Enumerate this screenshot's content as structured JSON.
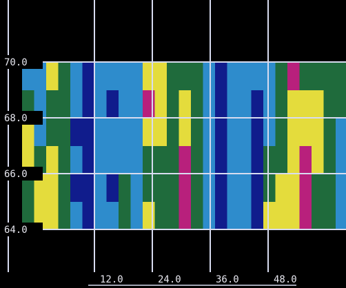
{
  "chart_data": {
    "type": "heatmap",
    "x": [
      -1.75,
      0.75,
      3.25,
      5.75,
      8.25,
      10.75,
      13.25,
      15.75,
      18.25,
      20.75,
      23.25,
      25.75,
      28.25,
      30.75,
      33.25,
      35.75,
      38.25,
      40.75,
      43.25,
      45.75,
      48.25,
      50.75,
      53.25,
      55.75,
      58.25,
      60.75,
      63.25
    ],
    "y": [
      64.5,
      65.5,
      66.5,
      67.5,
      68.5,
      69.5
    ],
    "z": [
      [
        2,
        3,
        3,
        2,
        1,
        0,
        1,
        1,
        2,
        1,
        3,
        2,
        2,
        4,
        2,
        1,
        0,
        1,
        1,
        0,
        3,
        3,
        3,
        4,
        2,
        2,
        1
      ],
      [
        2,
        3,
        3,
        2,
        0,
        0,
        1,
        0,
        2,
        1,
        2,
        2,
        2,
        4,
        2,
        1,
        0,
        1,
        1,
        0,
        2,
        3,
        3,
        4,
        2,
        2,
        1
      ],
      [
        3,
        2,
        3,
        2,
        1,
        0,
        1,
        1,
        1,
        1,
        2,
        2,
        2,
        4,
        2,
        1,
        0,
        1,
        1,
        0,
        2,
        2,
        3,
        4,
        3,
        2,
        1
      ],
      [
        3,
        1,
        2,
        2,
        0,
        0,
        1,
        1,
        1,
        1,
        3,
        3,
        2,
        3,
        2,
        1,
        0,
        1,
        1,
        0,
        1,
        2,
        3,
        3,
        3,
        2,
        1
      ],
      [
        2,
        1,
        2,
        2,
        1,
        0,
        1,
        0,
        1,
        1,
        4,
        3,
        2,
        3,
        2,
        1,
        0,
        1,
        1,
        0,
        1,
        2,
        3,
        3,
        3,
        2,
        2
      ],
      [
        1,
        1,
        3,
        2,
        1,
        0,
        1,
        1,
        1,
        1,
        3,
        3,
        2,
        2,
        2,
        1,
        0,
        1,
        1,
        1,
        1,
        2,
        4,
        2,
        2,
        2,
        2
      ]
    ],
    "colormap": [
      "#101c8c",
      "#2e8ccc",
      "#1f6b3c",
      "#e4dc3c",
      "#b8207c"
    ],
    "xlim": [
      -3,
      64
    ],
    "ylim": [
      64,
      70
    ],
    "xticks": [
      {
        "value": 12,
        "label": "12.0"
      },
      {
        "value": 24,
        "label": "24.0"
      },
      {
        "value": 36,
        "label": "36.0"
      },
      {
        "value": 48,
        "label": "48.0"
      }
    ],
    "yticks": [
      {
        "value": 64,
        "label": "64.0"
      },
      {
        "value": 66,
        "label": "66.0"
      },
      {
        "value": 68,
        "label": "68.0"
      },
      {
        "value": 70,
        "label": "70.0"
      }
    ],
    "grid": true
  }
}
